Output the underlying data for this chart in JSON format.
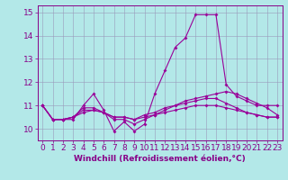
{
  "title": "",
  "xlabel": "Windchill (Refroidissement éolien,°C)",
  "background_color": "#b3e8e8",
  "line_color": "#990099",
  "x": [
    0,
    1,
    2,
    3,
    4,
    5,
    6,
    7,
    8,
    9,
    10,
    11,
    12,
    13,
    14,
    15,
    16,
    17,
    18,
    19,
    20,
    21,
    22,
    23
  ],
  "line1": [
    11.0,
    10.4,
    10.4,
    10.4,
    11.0,
    11.5,
    10.8,
    9.9,
    10.3,
    9.9,
    10.2,
    11.5,
    12.5,
    13.5,
    13.9,
    14.9,
    14.9,
    14.9,
    11.9,
    11.4,
    11.2,
    11.0,
    11.0,
    11.0
  ],
  "line2": [
    11.0,
    10.4,
    10.4,
    10.5,
    10.9,
    10.9,
    10.7,
    10.4,
    10.4,
    10.2,
    10.4,
    10.6,
    10.8,
    11.0,
    11.2,
    11.3,
    11.4,
    11.5,
    11.6,
    11.5,
    11.3,
    11.1,
    10.9,
    10.6
  ],
  "line3": [
    11.0,
    10.4,
    10.4,
    10.5,
    10.8,
    10.8,
    10.7,
    10.5,
    10.5,
    10.4,
    10.6,
    10.7,
    10.9,
    11.0,
    11.1,
    11.2,
    11.3,
    11.3,
    11.1,
    10.9,
    10.7,
    10.6,
    10.5,
    10.5
  ],
  "line4": [
    11.0,
    10.4,
    10.4,
    10.5,
    10.7,
    10.8,
    10.7,
    10.5,
    10.5,
    10.4,
    10.5,
    10.6,
    10.7,
    10.8,
    10.9,
    11.0,
    11.0,
    11.0,
    10.9,
    10.8,
    10.7,
    10.6,
    10.5,
    10.5
  ],
  "ylim": [
    9.5,
    15.3
  ],
  "xlim": [
    -0.5,
    23.5
  ],
  "yticks": [
    10,
    11,
    12,
    13,
    14,
    15
  ],
  "xticks": [
    0,
    1,
    2,
    3,
    4,
    5,
    6,
    7,
    8,
    9,
    10,
    11,
    12,
    13,
    14,
    15,
    16,
    17,
    18,
    19,
    20,
    21,
    22,
    23
  ],
  "grid_color": "#9999bb",
  "font_color": "#880088",
  "fontsize": 6.5,
  "xlabel_fontsize": 6.5
}
